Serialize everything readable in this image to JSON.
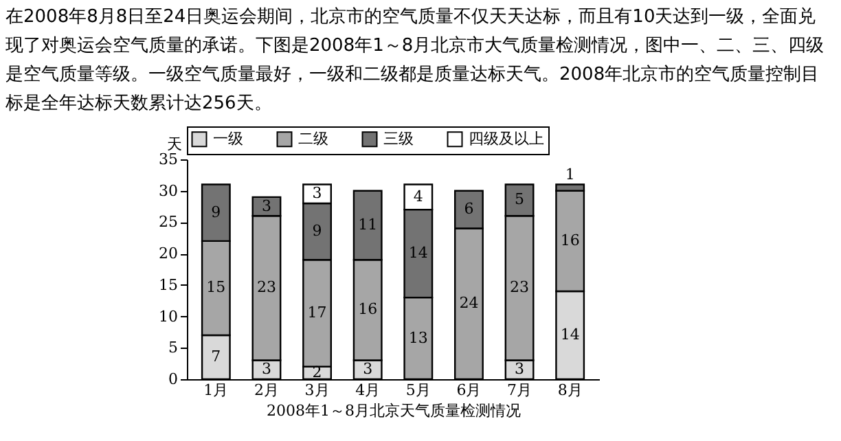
{
  "chart_data": {
    "type": "bar",
    "stacked": true,
    "title": "在2008年8月8日至24日奥运会期间，北京市的空气质量不仅天天达标，而且有10天达到一级，全面兑现了对奥运会空气质量的承诺。下图是2008年1～8月北京市大气质量检测情况，图中一、二、三、四级是空气质量等级。一级空气质量最好，一级和二级都是质量达标天气。2008年北京市的空气质量控制目标是全年达标天数累计达256天。",
    "xlabel": "2008年1～8月北京天气质量检测情况",
    "ylabel": "天",
    "categories": [
      "1月",
      "2月",
      "3月",
      "4月",
      "5月",
      "6月",
      "7月",
      "8月"
    ],
    "series": [
      {
        "name": "一级",
        "color": "#d9d9d9",
        "values": [
          7,
          3,
          2,
          3,
          0,
          0,
          3,
          14
        ],
        "value_labels": [
          "7",
          "3",
          "2",
          "3",
          null,
          null,
          "3",
          "14"
        ]
      },
      {
        "name": "二级",
        "color": "#a6a6a6",
        "values": [
          15,
          23,
          17,
          16,
          13,
          24,
          23,
          16
        ],
        "value_labels": [
          "15",
          "23",
          "17",
          "16",
          "13",
          "24",
          "23",
          "16"
        ]
      },
      {
        "name": "三级",
        "color": "#737373",
        "values": [
          9,
          3,
          9,
          11,
          14,
          6,
          5,
          1
        ],
        "value_labels": [
          "9",
          "3",
          "9",
          "11",
          "14",
          "6",
          "5",
          "1"
        ]
      },
      {
        "name": "四级及以上",
        "color": "#ffffff",
        "values": [
          0,
          0,
          3,
          0,
          4,
          0,
          0,
          0
        ],
        "value_labels": [
          null,
          null,
          "3",
          null,
          "4",
          null,
          null,
          null
        ]
      }
    ],
    "ylim": [
      0,
      35
    ],
    "yticks": [
      0,
      5,
      10,
      15,
      20,
      25,
      30,
      35
    ],
    "legend": "top"
  }
}
